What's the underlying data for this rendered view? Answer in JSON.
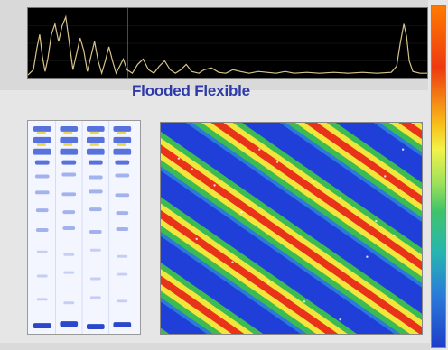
{
  "overlay": {
    "title": "Flooded Flexible"
  },
  "colors": {
    "spectrum_background": "#000000",
    "spectrum_line": "#d8c48a",
    "title_color": "#2d3aa8",
    "heatmap_low": "#1f3fd8",
    "heatmap_mid": "#41c36a",
    "heatmap_high": "#e8321a"
  }
}
